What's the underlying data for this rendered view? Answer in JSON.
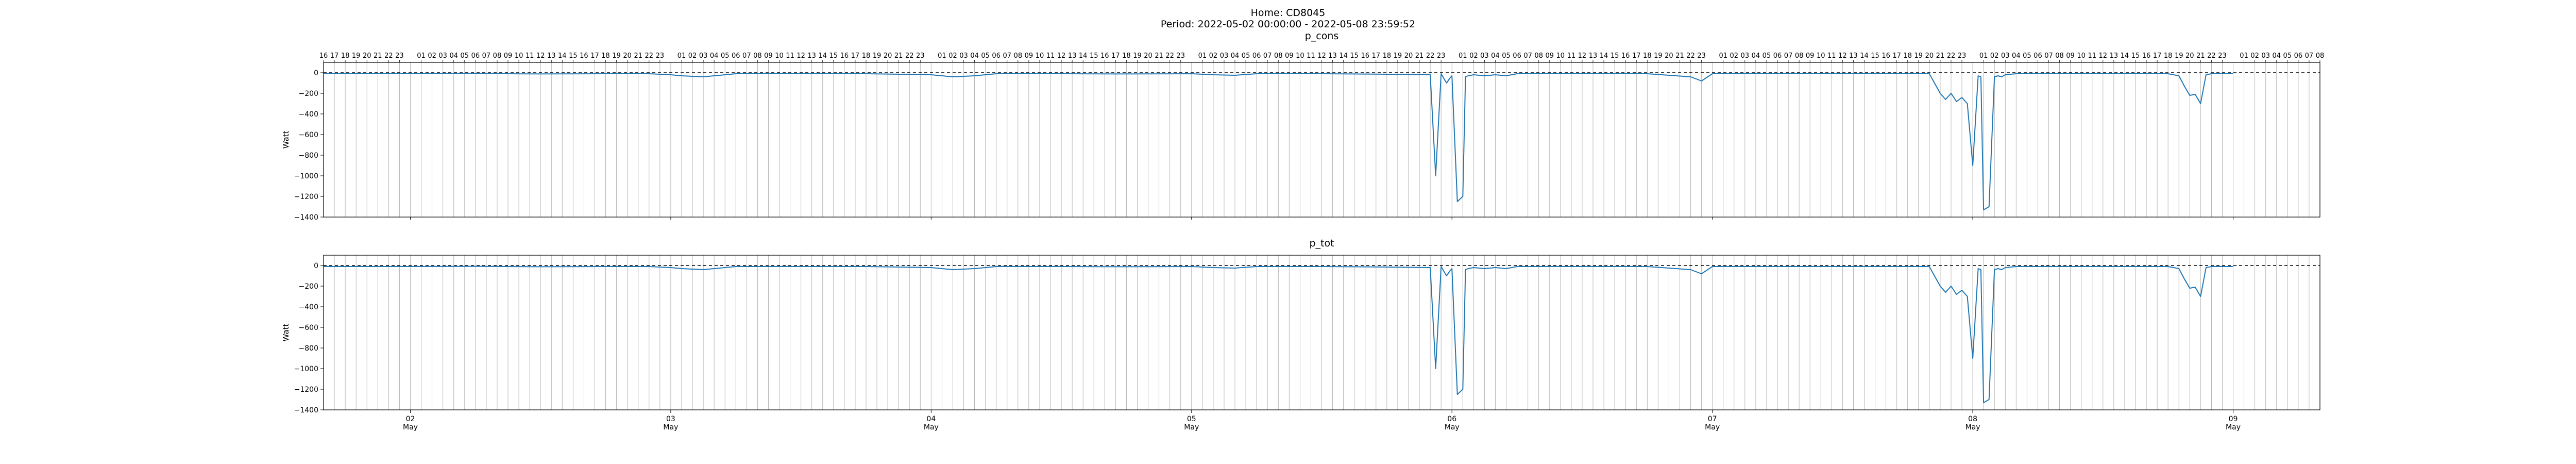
{
  "figure": {
    "title_line1": "Home: CD8045",
    "title_line2": "Period: 2022-05-02 00:00:00 - 2022-05-08 23:59:52"
  },
  "colors": {
    "series": "#1f77b4",
    "grid": "#b0b0b0",
    "axis": "#000000",
    "zero_line": "#000000"
  },
  "chart_data": [
    {
      "type": "line",
      "title": "p_cons",
      "ylabel": "Watt",
      "ylim": [
        -1400,
        100
      ],
      "yticks": [
        0,
        -200,
        -400,
        -600,
        -800,
        -1000,
        -1200,
        -1400
      ],
      "xlim": [
        "2022-05-01 16:00",
        "2022-05-09 08:00"
      ],
      "grid_x": "hourly",
      "zero_reference_line": "dashed",
      "top_hour_tick_labels": true,
      "bottom_day_tick_labels": false,
      "series": [
        {
          "x": [
            "2022-05-01 16:00",
            "2022-05-02 00:00",
            "2022-05-02 06:00",
            "2022-05-02 12:00",
            "2022-05-02 18:00",
            "2022-05-02 22:00",
            "2022-05-03 00:00",
            "2022-05-03 01:00",
            "2022-05-03 02:00",
            "2022-05-03 03:00",
            "2022-05-03 04:00",
            "2022-05-03 05:00",
            "2022-05-03 06:00",
            "2022-05-03 12:00",
            "2022-05-03 18:00",
            "2022-05-04 00:00",
            "2022-05-04 01:00",
            "2022-05-04 02:00",
            "2022-05-04 03:00",
            "2022-05-04 04:00",
            "2022-05-04 05:00",
            "2022-05-04 06:00",
            "2022-05-04 12:00",
            "2022-05-04 18:00",
            "2022-05-05 00:00",
            "2022-05-05 02:00",
            "2022-05-05 04:00",
            "2022-05-05 06:00",
            "2022-05-05 12:00",
            "2022-05-05 18:00",
            "2022-05-05 22:00",
            "2022-05-05 22:30",
            "2022-05-05 23:00",
            "2022-05-05 23:30",
            "2022-05-05 23:50",
            "2022-05-06 00:00",
            "2022-05-06 00:30",
            "2022-05-06 01:00",
            "2022-05-06 01:15",
            "2022-05-06 01:30",
            "2022-05-06 02:00",
            "2022-05-06 03:00",
            "2022-05-06 04:00",
            "2022-05-06 05:00",
            "2022-05-06 06:00",
            "2022-05-06 12:00",
            "2022-05-06 18:00",
            "2022-05-06 22:00",
            "2022-05-06 23:00",
            "2022-05-07 00:00",
            "2022-05-07 06:00",
            "2022-05-07 12:00",
            "2022-05-07 18:00",
            "2022-05-07 20:00",
            "2022-05-07 21:00",
            "2022-05-07 21:30",
            "2022-05-07 22:00",
            "2022-05-07 22:30",
            "2022-05-07 23:00",
            "2022-05-07 23:30",
            "2022-05-08 00:00",
            "2022-05-08 00:30",
            "2022-05-08 00:45",
            "2022-05-08 01:00",
            "2022-05-08 01:30",
            "2022-05-08 02:00",
            "2022-05-08 02:20",
            "2022-05-08 02:40",
            "2022-05-08 03:00",
            "2022-05-08 04:00",
            "2022-05-08 06:00",
            "2022-05-08 12:00",
            "2022-05-08 18:00",
            "2022-05-08 19:00",
            "2022-05-08 19:30",
            "2022-05-08 20:00",
            "2022-05-08 20:30",
            "2022-05-08 21:00",
            "2022-05-08 21:30",
            "2022-05-08 22:00",
            "2022-05-08 23:00",
            "2022-05-08 23:59"
          ],
          "y": [
            -10,
            -10,
            -8,
            -12,
            -10,
            -10,
            -20,
            -30,
            -35,
            -40,
            -30,
            -20,
            -10,
            -10,
            -10,
            -20,
            -30,
            -40,
            -35,
            -30,
            -20,
            -10,
            -10,
            -12,
            -10,
            -20,
            -25,
            -10,
            -10,
            -15,
            -20,
            -1000,
            -10,
            -100,
            -50,
            -30,
            -1250,
            -1200,
            -40,
            -30,
            -20,
            -30,
            -20,
            -30,
            -10,
            -10,
            -10,
            -40,
            -80,
            -10,
            -10,
            -10,
            -10,
            -10,
            -200,
            -260,
            -200,
            -280,
            -240,
            -300,
            -900,
            -30,
            -40,
            -1330,
            -1300,
            -40,
            -30,
            -40,
            -20,
            -10,
            -10,
            -10,
            -10,
            -30,
            -130,
            -220,
            -210,
            -300,
            -20,
            -10,
            -10,
            -10
          ]
        }
      ]
    },
    {
      "type": "line",
      "title": "p_tot",
      "ylabel": "Watt",
      "ylim": [
        -1400,
        100
      ],
      "yticks": [
        0,
        -200,
        -400,
        -600,
        -800,
        -1000,
        -1200,
        -1400
      ],
      "xlim": [
        "2022-05-01 16:00",
        "2022-05-09 08:00"
      ],
      "grid_x": "hourly",
      "zero_reference_line": "dashed",
      "top_hour_tick_labels": false,
      "bottom_day_tick_labels": true,
      "series": [
        {
          "x": [
            "2022-05-01 16:00",
            "2022-05-02 00:00",
            "2022-05-02 06:00",
            "2022-05-02 12:00",
            "2022-05-02 18:00",
            "2022-05-02 22:00",
            "2022-05-03 00:00",
            "2022-05-03 01:00",
            "2022-05-03 02:00",
            "2022-05-03 03:00",
            "2022-05-03 04:00",
            "2022-05-03 05:00",
            "2022-05-03 06:00",
            "2022-05-03 12:00",
            "2022-05-03 18:00",
            "2022-05-04 00:00",
            "2022-05-04 01:00",
            "2022-05-04 02:00",
            "2022-05-04 03:00",
            "2022-05-04 04:00",
            "2022-05-04 05:00",
            "2022-05-04 06:00",
            "2022-05-04 12:00",
            "2022-05-04 18:00",
            "2022-05-05 00:00",
            "2022-05-05 02:00",
            "2022-05-05 04:00",
            "2022-05-05 06:00",
            "2022-05-05 12:00",
            "2022-05-05 18:00",
            "2022-05-05 22:00",
            "2022-05-05 22:30",
            "2022-05-05 23:00",
            "2022-05-05 23:30",
            "2022-05-05 23:50",
            "2022-05-06 00:00",
            "2022-05-06 00:30",
            "2022-05-06 01:00",
            "2022-05-06 01:15",
            "2022-05-06 01:30",
            "2022-05-06 02:00",
            "2022-05-06 03:00",
            "2022-05-06 04:00",
            "2022-05-06 05:00",
            "2022-05-06 06:00",
            "2022-05-06 12:00",
            "2022-05-06 18:00",
            "2022-05-06 22:00",
            "2022-05-06 23:00",
            "2022-05-07 00:00",
            "2022-05-07 06:00",
            "2022-05-07 12:00",
            "2022-05-07 18:00",
            "2022-05-07 20:00",
            "2022-05-07 21:00",
            "2022-05-07 21:30",
            "2022-05-07 22:00",
            "2022-05-07 22:30",
            "2022-05-07 23:00",
            "2022-05-07 23:30",
            "2022-05-08 00:00",
            "2022-05-08 00:30",
            "2022-05-08 00:45",
            "2022-05-08 01:00",
            "2022-05-08 01:30",
            "2022-05-08 02:00",
            "2022-05-08 02:20",
            "2022-05-08 02:40",
            "2022-05-08 03:00",
            "2022-05-08 04:00",
            "2022-05-08 06:00",
            "2022-05-08 12:00",
            "2022-05-08 18:00",
            "2022-05-08 19:00",
            "2022-05-08 19:30",
            "2022-05-08 20:00",
            "2022-05-08 20:30",
            "2022-05-08 21:00",
            "2022-05-08 21:30",
            "2022-05-08 22:00",
            "2022-05-08 23:00",
            "2022-05-08 23:59"
          ],
          "y": [
            -10,
            -10,
            -8,
            -12,
            -10,
            -10,
            -20,
            -30,
            -35,
            -40,
            -30,
            -20,
            -10,
            -10,
            -10,
            -20,
            -30,
            -40,
            -35,
            -30,
            -20,
            -10,
            -10,
            -12,
            -10,
            -20,
            -25,
            -10,
            -10,
            -15,
            -20,
            -1000,
            -10,
            -100,
            -50,
            -30,
            -1250,
            -1200,
            -40,
            -30,
            -20,
            -30,
            -20,
            -30,
            -10,
            -10,
            -10,
            -40,
            -80,
            -10,
            -10,
            -10,
            -10,
            -10,
            -200,
            -260,
            -200,
            -280,
            -240,
            -300,
            -900,
            -30,
            -40,
            -1330,
            -1300,
            -40,
            -30,
            -40,
            -20,
            -10,
            -10,
            -10,
            -10,
            -30,
            -130,
            -220,
            -210,
            -300,
            -20,
            -10,
            -10,
            -10
          ]
        }
      ]
    }
  ]
}
